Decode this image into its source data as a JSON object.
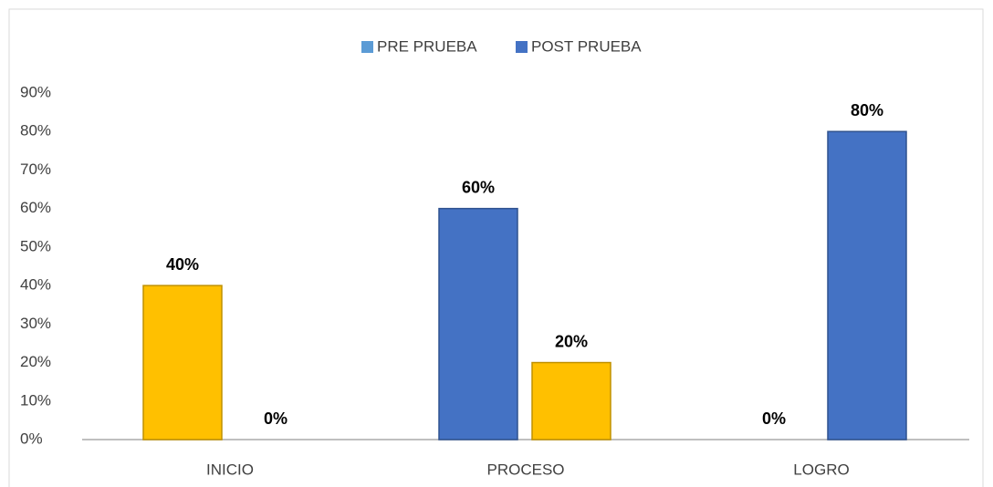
{
  "chart_data": {
    "type": "bar",
    "categories": [
      "INICIO",
      "PROCESO",
      "LOGRO"
    ],
    "series": [
      {
        "name": "PRE PRUEBA",
        "color": "#5b9bd5",
        "colors": [
          "#ffc000",
          "#4472c4",
          "#ffc000"
        ],
        "values": [
          40,
          60,
          0
        ],
        "value_labels": [
          "40%",
          "60%",
          "0%"
        ]
      },
      {
        "name": "POST PRUEBA",
        "color": "#4472c4",
        "colors": [
          "#4472c4",
          "#ffc000",
          "#4472c4"
        ],
        "values": [
          0,
          20,
          80
        ],
        "value_labels": [
          "0%",
          "20%",
          "80%"
        ]
      }
    ],
    "ylim": [
      0,
      90
    ],
    "yticks": [
      {
        "value": 0,
        "label": "0%"
      },
      {
        "value": 10,
        "label": "10%"
      },
      {
        "value": 20,
        "label": "20%"
      },
      {
        "value": 30,
        "label": "30%"
      },
      {
        "value": 40,
        "label": "40%"
      },
      {
        "value": 50,
        "label": "50%"
      },
      {
        "value": 60,
        "label": "60%"
      },
      {
        "value": 70,
        "label": "70%"
      },
      {
        "value": 80,
        "label": "80%"
      },
      {
        "value": 90,
        "label": "90%"
      }
    ],
    "grid": false,
    "legend": "top"
  }
}
